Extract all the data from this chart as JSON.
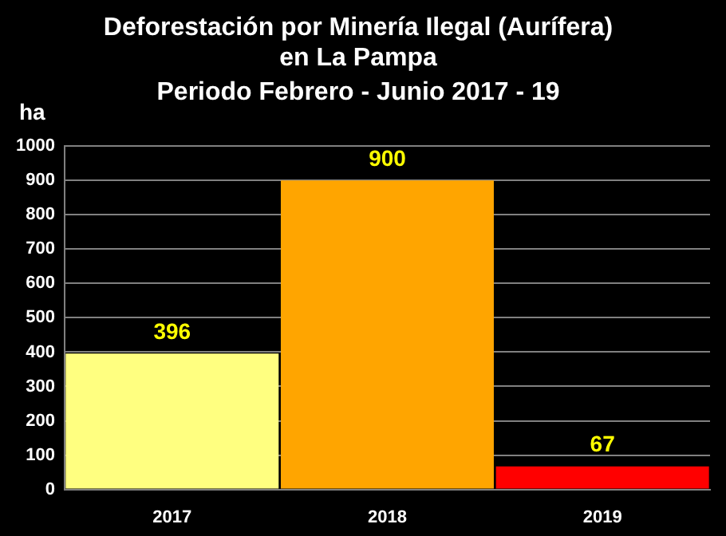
{
  "chart_data": {
    "type": "bar",
    "title": "Deforestación por Minería Ilegal (Aurífera)\nen La Pampa",
    "subtitle": "Periodo Febrero - Junio 2017 - 19",
    "ylabel": "ha",
    "categories": [
      "2017",
      "2018",
      "2019"
    ],
    "values": [
      396,
      900,
      67
    ],
    "colors": [
      "#ffff80",
      "#ffa500",
      "#ff0000"
    ],
    "ylim": [
      0,
      1000
    ],
    "yticks": [
      0,
      100,
      200,
      300,
      400,
      500,
      600,
      700,
      800,
      900,
      1000
    ],
    "grid": "y",
    "data_labels": true,
    "legend": false
  }
}
